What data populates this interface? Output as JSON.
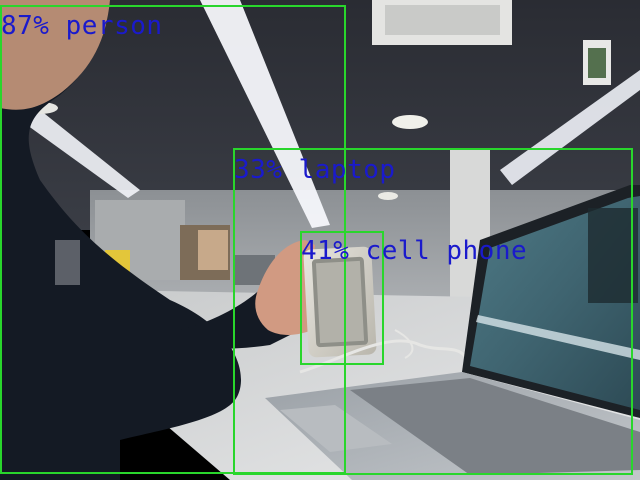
{
  "image": {
    "description_tag": "object-detection-output",
    "colors": {
      "box": "#29d62c",
      "label": "#1a1acc"
    }
  },
  "detections": [
    {
      "confidence": 0.87,
      "class": "person",
      "label": "87% person"
    },
    {
      "confidence": 0.33,
      "class": "laptop",
      "label": "33% laptop"
    },
    {
      "confidence": 0.41,
      "class": "cell phone",
      "label": "41% cell phone"
    }
  ]
}
